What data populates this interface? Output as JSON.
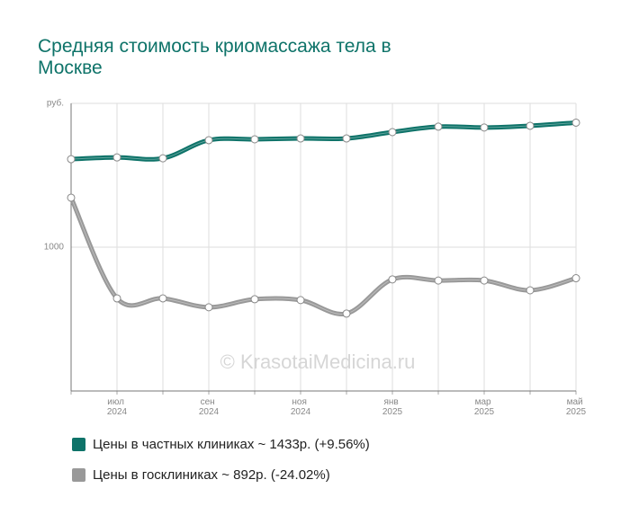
{
  "chart_data": {
    "type": "line",
    "title": "Средняя стоимость криомассажа тела в Москве",
    "watermark": "© KrasotaiMedicina.ru",
    "categories": [
      null,
      "июл 2024",
      null,
      "сен 2024",
      null,
      "ноя 2024",
      null,
      "янв 2025",
      null,
      "мар 2025",
      null,
      "май 2025"
    ],
    "series": [
      {
        "name": "Цены в частных клиниках ~ 1433р. (+9.56%)",
        "color": "#0e7369",
        "values": [
          1306,
          1312,
          1309,
          1372,
          1375,
          1378,
          1378,
          1400,
          1419,
          1416,
          1422,
          1433
        ]
      },
      {
        "name": "Цены в госклиниках ~ 892р. (-24.02%)",
        "color": "#999999",
        "values": [
          1172,
          822,
          822,
          791,
          819,
          816,
          769,
          888,
          884,
          884,
          850,
          892
        ]
      }
    ],
    "ylim": [
      500,
      1500
    ],
    "yticks": [
      1000,
      {
        "value": 1500,
        "label": "руб."
      }
    ],
    "grid": true
  }
}
